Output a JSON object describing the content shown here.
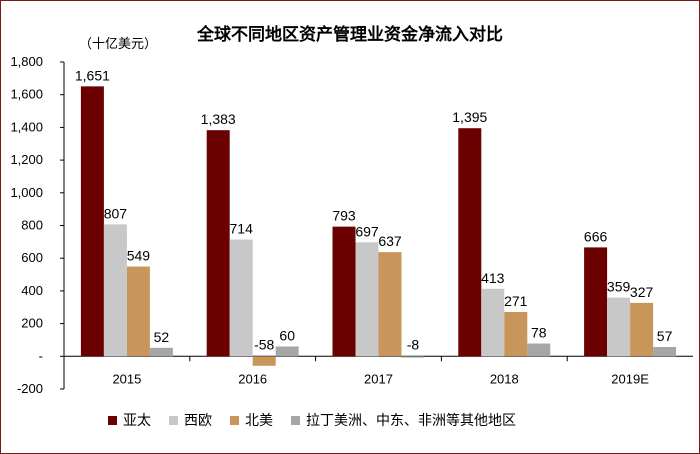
{
  "chart_data": {
    "type": "bar",
    "title": "全球不同地区资产管理业资金净流入对比",
    "unit_label": "（十亿美元）",
    "categories": [
      "2015",
      "2016",
      "2017",
      "2018",
      "2019E"
    ],
    "ylim": [
      -200,
      1800
    ],
    "yticks": [
      -200,
      0,
      200,
      400,
      600,
      800,
      1000,
      1200,
      1400,
      1600,
      1800
    ],
    "ytick_labels": [
      "-200",
      "-",
      "200",
      "400",
      "600",
      "800",
      "1,000",
      "1,200",
      "1,400",
      "1,600",
      "1,800"
    ],
    "grid": false,
    "legend_position": "bottom",
    "series": [
      {
        "name": "亚太",
        "color": "#6b0000",
        "values": [
          1651,
          1383,
          793,
          1395,
          666
        ],
        "labels": [
          "1,651",
          "1,383",
          "793",
          "1,395",
          "666"
        ]
      },
      {
        "name": "西欧",
        "color": "#c8c8c8",
        "values": [
          807,
          714,
          697,
          413,
          359
        ],
        "labels": [
          "807",
          "714",
          "697",
          "413",
          "359"
        ]
      },
      {
        "name": "北美",
        "color": "#c8955a",
        "values": [
          549,
          -58,
          637,
          271,
          327
        ],
        "labels": [
          "549",
          "-58",
          "637",
          "271",
          "327"
        ]
      },
      {
        "name": "拉丁美洲、中东、非洲等其他地区",
        "color": "#a6a6a6",
        "values": [
          52,
          60,
          -8,
          78,
          57
        ],
        "labels": [
          "52",
          "60",
          "-8",
          "78",
          "57"
        ]
      }
    ]
  }
}
